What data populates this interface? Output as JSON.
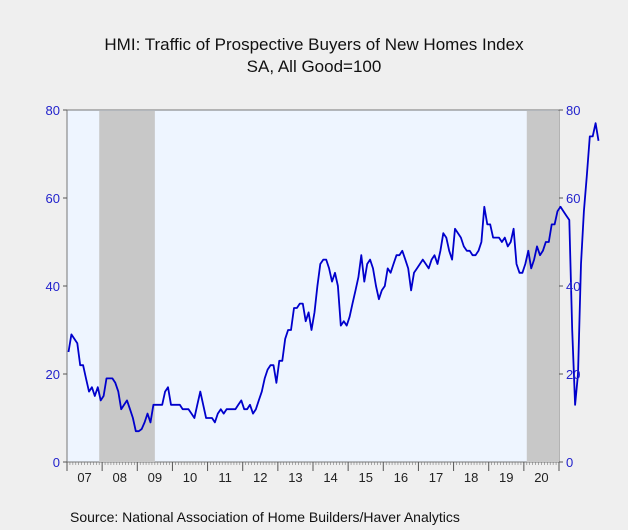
{
  "title": "HMI: Traffic of Prospective Buyers of New Homes Index",
  "subtitle": "SA, All Good=100",
  "source": "Source:  National Association of Home Builders/Haver Analytics",
  "colors": {
    "line": "#0000cc",
    "plot_bg": "#eef5ff",
    "recession": "#c8c8c8",
    "axis_text": "#2222cc"
  },
  "chart_data": {
    "type": "line",
    "title": "HMI: Traffic of Prospective Buyers of New Homes Index",
    "subtitle": "SA, All Good=100",
    "xlabel": "",
    "ylabel": "",
    "ylim": [
      0,
      80
    ],
    "y_ticks": [
      "0",
      "20",
      "40",
      "60",
      "80"
    ],
    "x_tick_labels": [
      "07",
      "08",
      "09",
      "10",
      "11",
      "12",
      "13",
      "14",
      "15",
      "16",
      "17",
      "18",
      "19",
      "20"
    ],
    "grid": false,
    "recessions": [
      {
        "start": "2007-12",
        "end": "2009-06"
      },
      {
        "start": "2020-02",
        "end": "2020-12"
      }
    ],
    "series": [
      {
        "start": "2007-01",
        "frequency": "monthly",
        "values": [
          25,
          29,
          28,
          27,
          22,
          22,
          19,
          16,
          17,
          15,
          17,
          14,
          15,
          19,
          19,
          19,
          18,
          16,
          12,
          13,
          14,
          12,
          10,
          7,
          7,
          7.5,
          9,
          11,
          9,
          13,
          13,
          13,
          13,
          16,
          17,
          13,
          13,
          13,
          13,
          12,
          12,
          12,
          11,
          10,
          13,
          16,
          13,
          10,
          10,
          10,
          9,
          11,
          12,
          11,
          12,
          12,
          12,
          12,
          13,
          14,
          12,
          12,
          13,
          11,
          12,
          14,
          16,
          19,
          21,
          22,
          22,
          18,
          23,
          23,
          28,
          30,
          30,
          35,
          35,
          36,
          36,
          32,
          34,
          30,
          34,
          40,
          45,
          46,
          46,
          44,
          41,
          43,
          40,
          31,
          32,
          31,
          33,
          36,
          39,
          42,
          47,
          41,
          45,
          46,
          44,
          40,
          37,
          39,
          40,
          44,
          43,
          45,
          47,
          47,
          48,
          46,
          44,
          39,
          43,
          44,
          45,
          46,
          45,
          44,
          46,
          47,
          45,
          48,
          52,
          51,
          48,
          46,
          53,
          52,
          51,
          49,
          48,
          48,
          47,
          47,
          48,
          50,
          58,
          54,
          54,
          51,
          51,
          51,
          50,
          51,
          49,
          50,
          53,
          45,
          43,
          43,
          45,
          48,
          44,
          46,
          49,
          47,
          48,
          50,
          50,
          54,
          54,
          57,
          58,
          57,
          56,
          55,
          30,
          13,
          20,
          45,
          57,
          65,
          74,
          74,
          77,
          73
        ]
      }
    ]
  }
}
